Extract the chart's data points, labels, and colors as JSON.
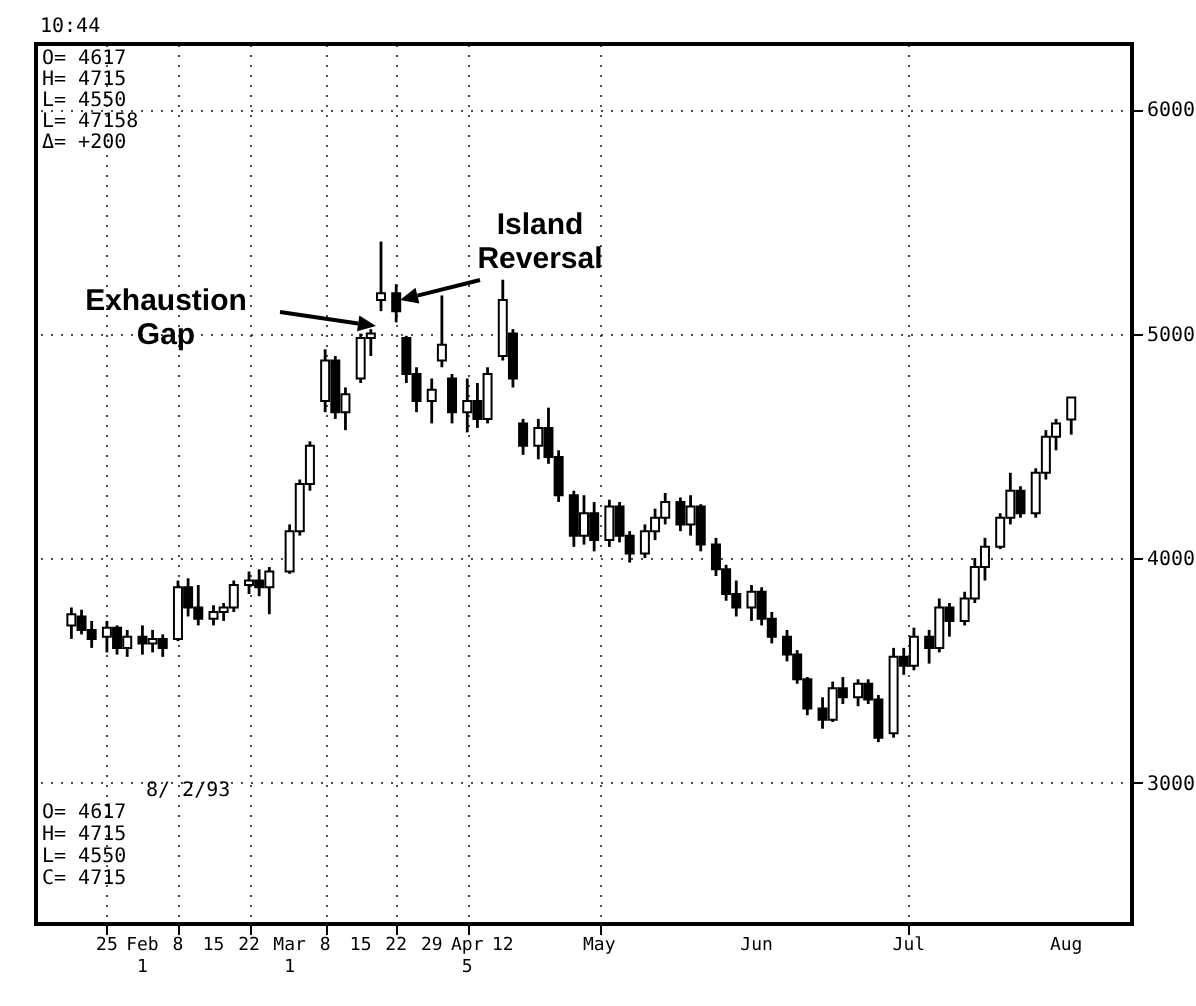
{
  "chart_data": {
    "type": "candlestick",
    "color": "#000000",
    "x": [
      "--01-18",
      "--01-20",
      "--01-22",
      "--01-25",
      "--01-27",
      "--01-29",
      "--02-01",
      "--02-03",
      "--02-05",
      "--02-08",
      "--02-10",
      "--02-12",
      "--02-15",
      "--02-17",
      "--02-19",
      "--02-22",
      "--02-24",
      "--02-26",
      "--03-01",
      "--03-03",
      "--03-05",
      "--03-08",
      "--03-10",
      "--03-12",
      "--03-15",
      "--03-17",
      "--03-19",
      "--03-22",
      "--03-24",
      "--03-26",
      "--03-29",
      "--03-31",
      "--04-02",
      "--04-05",
      "--04-07",
      "--04-09",
      "--04-12",
      "--04-14",
      "--04-16",
      "--04-19",
      "--04-21",
      "--04-23",
      "--04-26",
      "--04-28",
      "--04-30",
      "--05-03",
      "--05-05",
      "--05-07",
      "--05-10",
      "--05-12",
      "--05-14",
      "--05-17",
      "--05-19",
      "--05-21",
      "--05-24",
      "--05-26",
      "--05-28",
      "--05-31",
      "--06-02",
      "--06-04",
      "--06-07",
      "--06-09",
      "--06-11",
      "--06-14",
      "--06-16",
      "--06-18",
      "--06-21",
      "--06-23",
      "--06-25",
      "--06-28",
      "--06-30",
      "--07-02",
      "--07-05",
      "--07-07",
      "--07-09",
      "--07-12",
      "--07-14",
      "--07-16",
      "--07-19",
      "--07-21",
      "--07-23",
      "--07-26",
      "--07-28",
      "--07-30",
      "--08-02"
    ],
    "ohlc": [
      [
        3700,
        3780,
        3640,
        3750
      ],
      [
        3740,
        3770,
        3660,
        3680
      ],
      [
        3680,
        3720,
        3600,
        3640
      ],
      [
        3650,
        3720,
        3580,
        3690
      ],
      [
        3690,
        3700,
        3570,
        3600
      ],
      [
        3600,
        3680,
        3560,
        3650
      ],
      [
        3650,
        3700,
        3570,
        3620
      ],
      [
        3620,
        3680,
        3580,
        3640
      ],
      [
        3640,
        3660,
        3560,
        3600
      ],
      [
        3640,
        3900,
        3630,
        3870
      ],
      [
        3870,
        3910,
        3740,
        3780
      ],
      [
        3780,
        3880,
        3700,
        3730
      ],
      [
        3730,
        3790,
        3700,
        3760
      ],
      [
        3760,
        3800,
        3720,
        3780
      ],
      [
        3780,
        3900,
        3760,
        3880
      ],
      [
        3880,
        3940,
        3840,
        3900
      ],
      [
        3900,
        3950,
        3830,
        3870
      ],
      [
        3870,
        3960,
        3750,
        3940
      ],
      [
        3940,
        4150,
        3930,
        4120
      ],
      [
        4120,
        4350,
        4100,
        4330
      ],
      [
        4330,
        4520,
        4300,
        4500
      ],
      [
        4700,
        4930,
        4650,
        4880
      ],
      [
        4880,
        4900,
        4620,
        4650
      ],
      [
        4650,
        4760,
        4570,
        4730
      ],
      [
        4800,
        5000,
        4780,
        4980
      ],
      [
        4980,
        5020,
        4900,
        5000
      ],
      [
        5150,
        5410,
        5100,
        5180
      ],
      [
        5180,
        5220,
        5050,
        5100
      ],
      [
        4980,
        4990,
        4780,
        4820
      ],
      [
        4820,
        4850,
        4650,
        4700
      ],
      [
        4700,
        4800,
        4600,
        4750
      ],
      [
        4880,
        5170,
        4850,
        4950
      ],
      [
        4800,
        4820,
        4600,
        4650
      ],
      [
        4650,
        4800,
        4560,
        4700
      ],
      [
        4700,
        4780,
        4580,
        4620
      ],
      [
        4620,
        4850,
        4600,
        4820
      ],
      [
        4900,
        5240,
        4880,
        5150
      ],
      [
        5000,
        5020,
        4760,
        4800
      ],
      [
        4600,
        4620,
        4460,
        4500
      ],
      [
        4500,
        4620,
        4440,
        4580
      ],
      [
        4580,
        4670,
        4420,
        4450
      ],
      [
        4450,
        4480,
        4250,
        4280
      ],
      [
        4280,
        4300,
        4050,
        4100
      ],
      [
        4100,
        4280,
        4060,
        4200
      ],
      [
        4200,
        4250,
        4030,
        4080
      ],
      [
        4080,
        4260,
        4050,
        4230
      ],
      [
        4230,
        4250,
        4070,
        4100
      ],
      [
        4100,
        4120,
        3980,
        4020
      ],
      [
        4020,
        4150,
        4000,
        4120
      ],
      [
        4120,
        4220,
        4080,
        4180
      ],
      [
        4180,
        4290,
        4150,
        4250
      ],
      [
        4250,
        4270,
        4120,
        4150
      ],
      [
        4150,
        4280,
        4100,
        4230
      ],
      [
        4230,
        4240,
        4030,
        4060
      ],
      [
        4060,
        4090,
        3920,
        3950
      ],
      [
        3950,
        3970,
        3810,
        3840
      ],
      [
        3840,
        3900,
        3740,
        3780
      ],
      [
        3780,
        3880,
        3720,
        3850
      ],
      [
        3850,
        3870,
        3700,
        3730
      ],
      [
        3730,
        3760,
        3620,
        3650
      ],
      [
        3650,
        3680,
        3540,
        3570
      ],
      [
        3570,
        3590,
        3440,
        3460
      ],
      [
        3460,
        3470,
        3300,
        3330
      ],
      [
        3330,
        3380,
        3240,
        3280
      ],
      [
        3280,
        3450,
        3270,
        3420
      ],
      [
        3420,
        3470,
        3350,
        3380
      ],
      [
        3380,
        3460,
        3340,
        3440
      ],
      [
        3440,
        3460,
        3350,
        3370
      ],
      [
        3370,
        3390,
        3180,
        3200
      ],
      [
        3220,
        3600,
        3200,
        3560
      ],
      [
        3560,
        3600,
        3480,
        3520
      ],
      [
        3520,
        3690,
        3500,
        3650
      ],
      [
        3650,
        3680,
        3530,
        3600
      ],
      [
        3600,
        3820,
        3580,
        3780
      ],
      [
        3780,
        3800,
        3650,
        3720
      ],
      [
        3720,
        3850,
        3700,
        3820
      ],
      [
        3820,
        4000,
        3800,
        3960
      ],
      [
        3960,
        4090,
        3900,
        4050
      ],
      [
        4050,
        4200,
        4040,
        4180
      ],
      [
        4180,
        4380,
        4150,
        4300
      ],
      [
        4300,
        4320,
        4180,
        4200
      ],
      [
        4200,
        4400,
        4180,
        4380
      ],
      [
        4380,
        4570,
        4350,
        4540
      ],
      [
        4540,
        4620,
        4480,
        4600
      ],
      [
        4617,
        4715,
        4550,
        4715
      ]
    ],
    "xlim": [
      "--01-13",
      "--08-12"
    ],
    "xticks": [
      {
        "value": "--01-25",
        "label": "25"
      },
      {
        "value": "--02-01",
        "label": "Feb\n1"
      },
      {
        "value": "--02-08",
        "label": "8"
      },
      {
        "value": "--02-15",
        "label": "15"
      },
      {
        "value": "--02-22",
        "label": "22"
      },
      {
        "value": "--03-01",
        "label": "Mar\n1"
      },
      {
        "value": "--03-08",
        "label": "8"
      },
      {
        "value": "--03-15",
        "label": "15"
      },
      {
        "value": "--03-22",
        "label": "22"
      },
      {
        "value": "--03-29",
        "label": "29"
      },
      {
        "value": "--04-05",
        "label": "Apr\n5"
      },
      {
        "value": "--04-12",
        "label": "12"
      },
      {
        "value": "--05-01",
        "label": "May"
      },
      {
        "value": "--06-01",
        "label": "Jun"
      },
      {
        "value": "--07-01",
        "label": "Jul"
      },
      {
        "value": "--08-01",
        "label": "Aug"
      }
    ],
    "ylim": [
      2370,
      6290
    ],
    "yticks": [
      {
        "value": 3000,
        "label": "3000"
      },
      {
        "value": 4000,
        "label": "4000"
      },
      {
        "value": 5000,
        "label": "5000"
      },
      {
        "value": 6000,
        "label": "6000"
      }
    ],
    "grid": true,
    "annotations": [
      "Exhaustion Gap",
      "Island Reversal",
      "10:44",
      "O= 4617",
      "H= 4715",
      "L= 4550",
      "L= 47158",
      "Δ= +200",
      "8/ 2/93",
      "O= 4617",
      "H= 4715",
      "L= 4550",
      "C= 4715"
    ]
  }
}
